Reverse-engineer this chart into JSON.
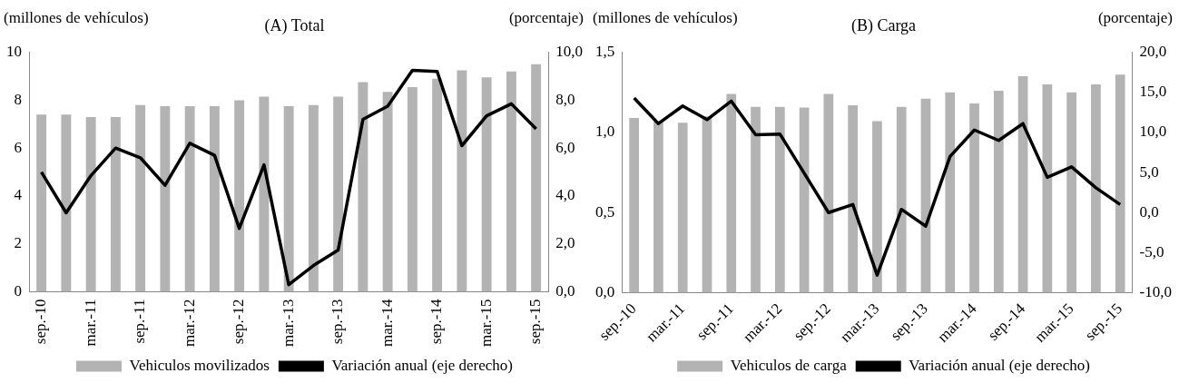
{
  "chart_data": [
    {
      "type": "bar",
      "title": "(A) Total",
      "ylabel": "(millones de vehículos)",
      "y2label": "(porcentaje)",
      "categories": [
        "sep.-10",
        null,
        "mar.-11",
        null,
        "sep.-11",
        null,
        "mar.-12",
        null,
        "sep.-12",
        null,
        "mar.-13",
        null,
        "sep.-13",
        null,
        "mar.-14",
        null,
        "sep.-14",
        null,
        "mar.-15",
        null,
        "sep.-15"
      ],
      "series": [
        {
          "name": "Vehiculos movilizados",
          "color": "#b3b3b3",
          "values": [
            7.4,
            7.4,
            7.3,
            7.3,
            7.8,
            7.75,
            7.75,
            7.75,
            8.0,
            8.15,
            7.75,
            7.8,
            8.15,
            8.75,
            8.35,
            8.55,
            8.9,
            9.25,
            8.95,
            9.2,
            9.5
          ]
        },
        {
          "name": "Variación anual (eje derecho)",
          "type": "line",
          "axis": "y2",
          "color": "#000000",
          "values": [
            5.0,
            3.3,
            4.85,
            6.0,
            5.6,
            4.45,
            6.2,
            5.7,
            2.65,
            5.3,
            0.3,
            1.1,
            1.75,
            7.2,
            7.75,
            9.25,
            9.2,
            6.1,
            7.35,
            7.85,
            6.8
          ]
        }
      ],
      "ylim": [
        0,
        10
      ],
      "yticks": [
        0,
        2,
        4,
        6,
        8,
        10
      ],
      "y2lim": [
        0,
        10
      ],
      "y2ticks": [
        {
          "value": 0,
          "label": "0,0"
        },
        {
          "value": 2,
          "label": "2,0"
        },
        {
          "value": 4,
          "label": "4,0"
        },
        {
          "value": 6,
          "label": "6,0"
        },
        {
          "value": 8,
          "label": "8,0"
        },
        {
          "value": 10,
          "label": "10,0"
        }
      ],
      "grid": false,
      "legend": "bottom",
      "marker": "none"
    },
    {
      "type": "bar",
      "title": "(B) Carga",
      "ylabel": "(millones de vehículos)",
      "y2label": "(porcentaje)",
      "categories": [
        "sep.-10",
        null,
        "mar.-11",
        null,
        "sep.-11",
        null,
        "mar.-12",
        null,
        "sep.-12",
        null,
        "mar.-13",
        null,
        "sep.-13",
        null,
        "mar.-14",
        null,
        "sep.-14",
        null,
        "mar.-15",
        null,
        "sep.-15"
      ],
      "series": [
        {
          "name": "Vehiculos de carga",
          "color": "#b3b3b3",
          "values": [
            1.09,
            1.07,
            1.06,
            1.1,
            1.24,
            1.16,
            1.16,
            1.155,
            1.24,
            1.17,
            1.07,
            1.16,
            1.21,
            1.25,
            1.18,
            1.26,
            1.35,
            1.3,
            1.25,
            1.3,
            1.36
          ]
        },
        {
          "name": "Variación anual (eje derecho)",
          "type": "line",
          "axis": "y2",
          "color": "#000000",
          "values": [
            14.3,
            11.1,
            13.3,
            11.6,
            13.9,
            9.7,
            9.8,
            4.9,
            0.0,
            1.0,
            -7.8,
            0.4,
            -1.7,
            7.0,
            10.3,
            9.0,
            11.1,
            4.4,
            5.7,
            3.1,
            1.0
          ]
        }
      ],
      "ylim": [
        0,
        1.5
      ],
      "yticks": [
        {
          "value": 0,
          "label": "0,0"
        },
        {
          "value": 0.5,
          "label": "0,5"
        },
        {
          "value": 1,
          "label": "1,0"
        },
        {
          "value": 1.5,
          "label": "1,5"
        }
      ],
      "y2lim": [
        -10,
        20
      ],
      "y2ticks": [
        {
          "value": -10,
          "label": "-10,0"
        },
        {
          "value": -5,
          "label": "-5,0"
        },
        {
          "value": 0,
          "label": "0,0"
        },
        {
          "value": 5,
          "label": "5,0"
        },
        {
          "value": 10,
          "label": "10,0"
        },
        {
          "value": 15,
          "label": "15,0"
        },
        {
          "value": 20,
          "label": "20,0"
        }
      ],
      "grid": false,
      "legend": "bottom",
      "marker": "none"
    }
  ]
}
